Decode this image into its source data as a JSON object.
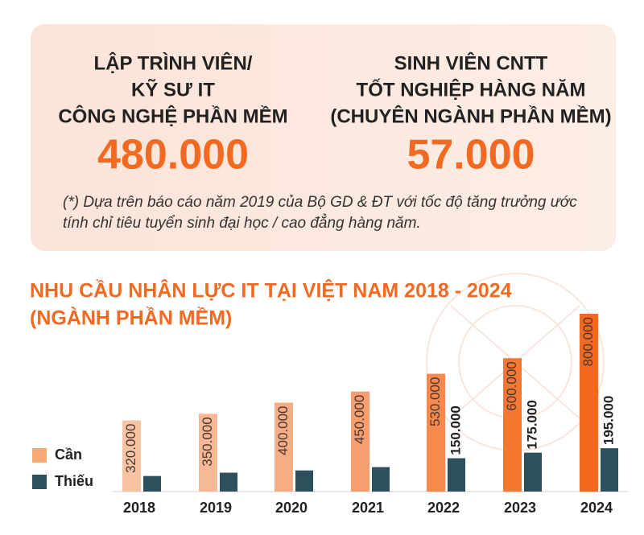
{
  "stats": [
    {
      "lines": [
        "LẬP TRÌNH VIÊN/",
        "KỸ SƯ IT",
        "CÔNG NGHỆ PHẦN MỀM"
      ],
      "value": "480.000"
    },
    {
      "lines": [
        "SINH VIÊN CNTT",
        "TỐT NGHIỆP HÀNG NĂM",
        "(CHUYÊN NGÀNH PHẦN MỀM)"
      ],
      "value": "57.000"
    }
  ],
  "note": [
    "(*) Dựa trên báo cáo năm 2019 của Bộ GD & ĐT với tốc độ tăng trưởng ước",
    "tính chỉ tiêu tuyển sinh đại học / cao đẳng hàng năm."
  ],
  "chart_data": {
    "type": "bar",
    "title": [
      "NHU CẦU NHÂN LỰC IT TẠI VIỆT NAM 2018 - 2024",
      "(NGÀNH PHẦN MỀM)"
    ],
    "categories": [
      "2018",
      "2019",
      "2020",
      "2021",
      "2022",
      "2023",
      "2024"
    ],
    "series": [
      {
        "name": "Cần",
        "color": "#f5a878",
        "colors": [
          "#f7c3a5",
          "#f6b895",
          "#f6ac85",
          "#f59e70",
          "#f58a4c",
          "#f47832",
          "#f36a1e"
        ],
        "values": [
          320000,
          350000,
          400000,
          450000,
          530000,
          600000,
          800000
        ],
        "value_labels": [
          "320.000",
          "350.000",
          "400.000",
          "450.000",
          "530.000",
          "600.000",
          "800.000"
        ]
      },
      {
        "name": "Thiếu",
        "color": "#2e4f5c",
        "values": [
          70000,
          85000,
          95000,
          110000,
          150000,
          175000,
          195000
        ],
        "value_labels": [
          null,
          null,
          null,
          null,
          "150.000",
          "175.000",
          "195.000"
        ]
      }
    ]
  }
}
